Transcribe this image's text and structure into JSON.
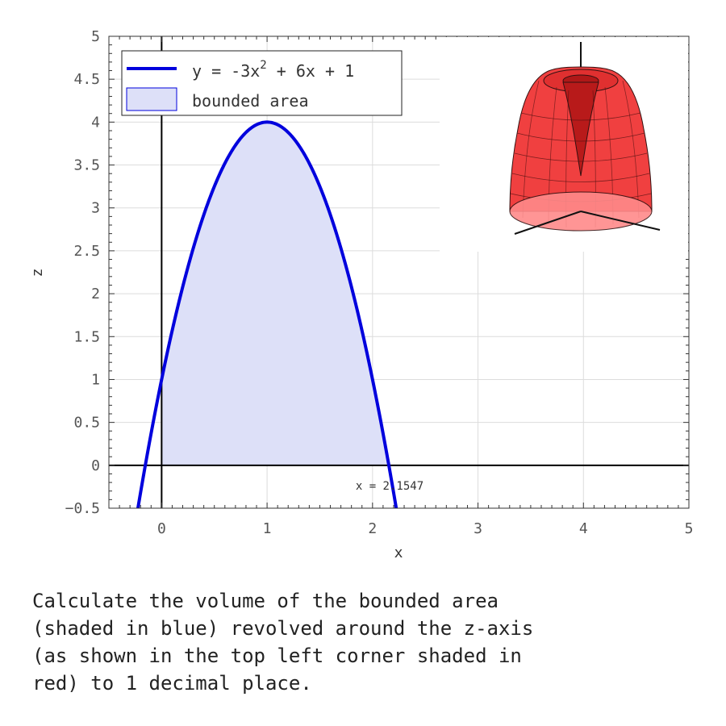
{
  "chart_data": {
    "type": "line",
    "xlabel": "x",
    "ylabel": "z",
    "xlim": [
      -0.5,
      5
    ],
    "ylim": [
      -0.5,
      5
    ],
    "xticks": [
      "0",
      "1",
      "2",
      "3",
      "4",
      "5"
    ],
    "yticks": [
      "5",
      "4.5",
      "4",
      "3.5",
      "3",
      "2.5",
      "2",
      "1.5",
      "1",
      "0.5",
      "0",
      "−0.5"
    ],
    "grid": true,
    "legend_position": "top-left",
    "series": [
      {
        "name": "y = -3x^2 + 6x + 1",
        "legend_base": "y = -3x",
        "legend_sup": "2",
        "legend_tail": " + 6x + 1",
        "coefficients": {
          "a": -3,
          "b": 6,
          "c": 1
        },
        "color": "#0000dd"
      }
    ],
    "shaded_region": {
      "name": "bounded area",
      "from_x": 0,
      "to_x": 2.1547,
      "fill": "#dde0f8",
      "stroke": "#0000dd"
    },
    "annotation": "x = 2.1547",
    "inset": {
      "description": "3d-solid-of-revolution",
      "color": "#e83030"
    }
  },
  "question": "Calculate the volume of the bounded area\n(shaded in blue) revolved around the z-axis\n(as shown in the top left corner shaded in\nred) to 1 decimal place."
}
